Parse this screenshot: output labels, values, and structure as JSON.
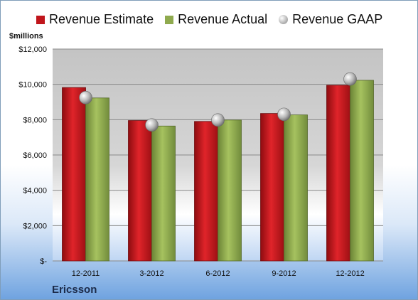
{
  "chart_data": {
    "type": "bar",
    "categories": [
      "12-2011",
      "3-2012",
      "6-2012",
      "9-2012",
      "12-2012"
    ],
    "series": [
      {
        "name": "Revenue Estimate",
        "type": "bar",
        "color": "#c0151b",
        "values": [
          9820,
          7950,
          7900,
          8350,
          9950
        ]
      },
      {
        "name": "Revenue Actual",
        "type": "bar",
        "color": "#8faa4e",
        "values": [
          9230,
          7640,
          7980,
          8270,
          10230
        ]
      },
      {
        "name": "Revenue GAAP",
        "type": "marker",
        "color": "#a0a0a0",
        "values": [
          9250,
          7700,
          7980,
          8300,
          10300
        ]
      }
    ],
    "yticks": [
      "$-",
      "$2,000",
      "$4,000",
      "$6,000",
      "$8,000",
      "$10,000",
      "$12,000"
    ],
    "ylim": [
      0,
      12000
    ],
    "ylabel": "$millions",
    "company": "Ericsson",
    "legend_position": "top",
    "grid": true
  }
}
